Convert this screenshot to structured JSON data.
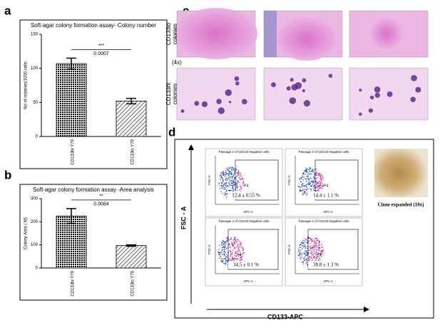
{
  "chart_data": [
    {
      "type": "bar",
      "panel": "a",
      "title": "Soft-agar colony formation assay- Colony number",
      "y_label": "No of colonies/1000 cells",
      "categories": [
        "CD133hi Y79",
        "CD133lo Y79"
      ],
      "values": [
        107,
        52
      ],
      "errors": [
        8,
        4
      ],
      "ylim": [
        0,
        150
      ],
      "yticks": [
        0,
        50,
        100,
        150
      ],
      "annotations": [
        "***",
        "0.0007"
      ]
    },
    {
      "type": "bar",
      "panel": "b",
      "title": "Soft-agar colony formation assay -Area analysis",
      "y_label": "Colony Area ( M)",
      "categories": [
        "CD133hi Y79",
        "CD133lo Y79"
      ],
      "values": [
        225,
        97
      ],
      "errors": [
        32,
        3
      ],
      "ylim": [
        0,
        300
      ],
      "yticks": [
        0,
        100,
        200,
        300
      ],
      "annotations": [
        "**",
        "0.0084"
      ]
    }
  ],
  "images": {
    "panel": "c",
    "rows": [
      [
        "CD133lo",
        "colonies"
      ],
      [
        "CD133hi",
        "colonies"
      ]
    ],
    "magnification": "(4x)"
  },
  "flow": {
    "panel": "d",
    "plots": [
      {
        "title": "Passage 2 of CD133 Negative cells",
        "gate": "P4",
        "percent": "12.4 ± 0.55 %"
      },
      {
        "title": "Passage 3 of CD133 Negative cells",
        "gate": "P4",
        "percent": "14.4 ± 1.1 %"
      },
      {
        "title": "Passage 4 of CD133 Negative cells",
        "gate": "P4",
        "percent": "34.5 ± 0.1 %"
      },
      {
        "title": "Passage 5 of CD133 Negative cells",
        "gate": "P4",
        "percent": "38.8 ± 1.3 %"
      }
    ],
    "plot_y": "FSC-A",
    "plot_x": "APC-A",
    "big_y": "FSC - A",
    "big_x": "CD133-APC",
    "clone_caption": "Clone expanded (10x)"
  }
}
